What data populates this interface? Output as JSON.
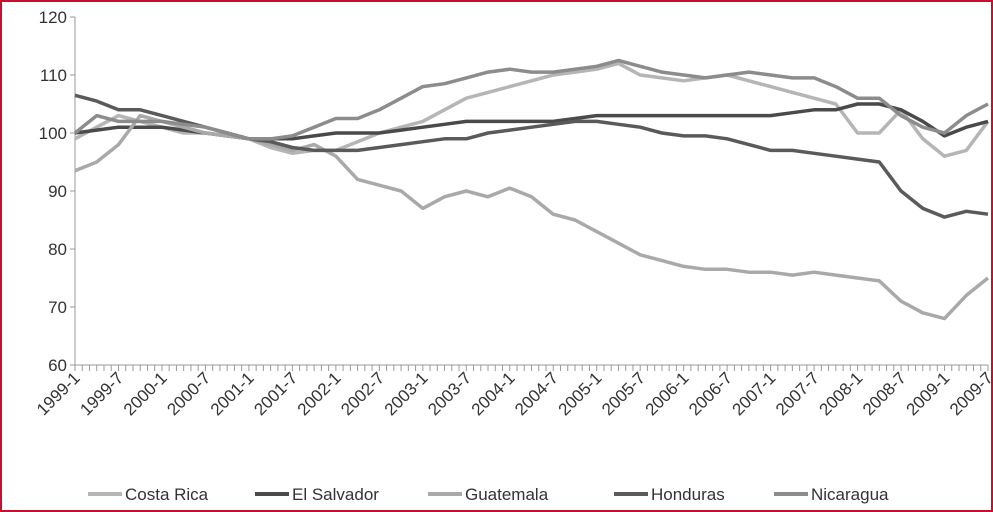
{
  "chart_data": {
    "type": "line",
    "categories": [
      "1999-1",
      null,
      "1999-7",
      null,
      "2000-1",
      null,
      "2000-7",
      null,
      "2001-1",
      null,
      "2001-7",
      null,
      "2002-1",
      null,
      "2002-7",
      null,
      "2003-1",
      null,
      "2003-7",
      null,
      "2004-1",
      null,
      "2004-7",
      null,
      "2005-1",
      null,
      "2005-7",
      null,
      "2006-1",
      null,
      "2006-7",
      null,
      "2007-1",
      null,
      "2007-7",
      null,
      "2008-1",
      null,
      "2008-7",
      null,
      "2009-1",
      null,
      "2009-7"
    ],
    "ylim": [
      60,
      120
    ],
    "yticks": [
      60,
      70,
      80,
      90,
      100,
      110,
      120
    ],
    "series": [
      {
        "name": "Costa Rica",
        "color": "#b5b5b5",
        "values": [
          99,
          101,
          103,
          102,
          101,
          100,
          100,
          99.5,
          99,
          97.5,
          96.5,
          97,
          97,
          98.5,
          100,
          101,
          102,
          104,
          106,
          107,
          108,
          109,
          110,
          110.5,
          111,
          112,
          110,
          109.5,
          109,
          109.5,
          110,
          109,
          108,
          107,
          106,
          105,
          100,
          100,
          104,
          99,
          96,
          97,
          102
        ]
      },
      {
        "name": "El Salvador",
        "color": "#4a4a4a",
        "values": [
          100,
          100.5,
          101,
          101,
          101,
          100.5,
          100,
          99.5,
          99,
          99,
          99,
          99.5,
          100,
          100,
          100,
          100.5,
          101,
          101.5,
          102,
          102,
          102,
          102,
          102,
          102.5,
          103,
          103,
          103,
          103,
          103,
          103,
          103,
          103,
          103,
          103.5,
          104,
          104,
          105,
          105,
          104,
          102,
          99.5,
          101,
          102
        ]
      },
      {
        "name": "Guatemala",
        "color": "#a9a9a9",
        "values": [
          93.5,
          95,
          98,
          103,
          102,
          101,
          100,
          99.5,
          99,
          98,
          97,
          98,
          96,
          92,
          91,
          90,
          87,
          89,
          90,
          89,
          90.5,
          89,
          86,
          85,
          83,
          81,
          79,
          78,
          77,
          76.5,
          76.5,
          76,
          76,
          75.5,
          76,
          75.5,
          75,
          74.5,
          71,
          69,
          68,
          72,
          75
        ]
      },
      {
        "name": "Honduras",
        "color": "#5a5a5a",
        "values": [
          106.5,
          105.5,
          104,
          104,
          103,
          102,
          101,
          100,
          99,
          98.5,
          97.5,
          97,
          97,
          97,
          97.5,
          98,
          98.5,
          99,
          99,
          100,
          100.5,
          101,
          101.5,
          102,
          102,
          101.5,
          101,
          100,
          99.5,
          99.5,
          99,
          98,
          97,
          97,
          96.5,
          96,
          95.5,
          95,
          90,
          87,
          85.5,
          86.5,
          86
        ]
      },
      {
        "name": "Nicaragua",
        "color": "#8c8c8c",
        "values": [
          100,
          103,
          102,
          102,
          102,
          101.5,
          101,
          100,
          99,
          99,
          99.5,
          101,
          102.5,
          102.5,
          104,
          106,
          108,
          108.5,
          109.5,
          110.5,
          111,
          110.5,
          110.5,
          111,
          111.5,
          112.5,
          111.5,
          110.5,
          110,
          109.5,
          110,
          110.5,
          110,
          109.5,
          109.5,
          108,
          106,
          106,
          103,
          101,
          100,
          103,
          105
        ]
      }
    ]
  }
}
